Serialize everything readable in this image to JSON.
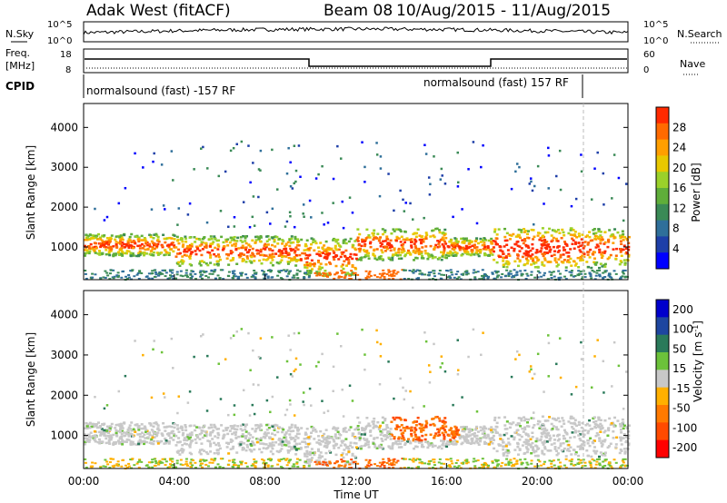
{
  "header": {
    "station": "Adak West (fitACF)",
    "beam": "Beam 08",
    "dates": "10/Aug/2015 - 11/Aug/2015"
  },
  "small_panels": {
    "nsky_label": "N.Sky",
    "nsearch_label": "N.Search",
    "noise_ticks": [
      "10^5",
      "10^0"
    ],
    "noise_right_ticks": [
      "10^5",
      "10^0"
    ],
    "freq_label_1": "Freq.",
    "freq_label_2": "[MHz]",
    "freq_ticks": [
      "18",
      "8"
    ],
    "nave_label": "Nave",
    "nave_ticks": [
      "60",
      "0"
    ],
    "cpid_label": "CPID",
    "cpid_left": "normalsound (fast) -157 RF",
    "cpid_right": "normalsound (fast) 157 RF"
  },
  "colors": {
    "power_scale": [
      "#0000ff",
      "#1e3fa8",
      "#2f6f9a",
      "#3a8a56",
      "#5fae3a",
      "#9bd12a",
      "#e8c800",
      "#ff9f00",
      "#ff6a00",
      "#ff2a00"
    ],
    "velocity_scale": [
      "#0000cc",
      "#1e46a0",
      "#2a7a5a",
      "#6cc23a",
      "#c8c8c8",
      "#ffb000",
      "#ff7a00",
      "#ff4a00",
      "#ff0000"
    ]
  },
  "chart_data": [
    {
      "type": "heatmap",
      "name": "power",
      "ylabel": "Slant Range [km]",
      "yticks": [
        "1000",
        "2000",
        "3000",
        "4000"
      ],
      "ylim": [
        180,
        4600
      ],
      "colorbar_label": "Power [dB]",
      "colorbar_ticks": [
        "4",
        "8",
        "12",
        "16",
        "20",
        "24",
        "28"
      ],
      "colorbar_range": [
        0,
        32
      ],
      "xlim": [
        "00:00",
        "24:00"
      ]
    },
    {
      "type": "heatmap",
      "name": "velocity",
      "ylabel": "Slant Range [km]",
      "yticks": [
        "1000",
        "2000",
        "3000",
        "4000"
      ],
      "ylim": [
        180,
        4600
      ],
      "colorbar_label": "Velocity [m s^-1]",
      "colorbar_ticks": [
        "200",
        "100",
        "50",
        "15",
        "-15",
        "-50",
        "-100",
        "-200"
      ],
      "xlabel": "Time UT",
      "xticks": [
        "00:00",
        "04:00",
        "08:00",
        "12:00",
        "16:00",
        "20:00",
        "00:00"
      ],
      "xlim": [
        "00:00",
        "24:00"
      ]
    }
  ]
}
